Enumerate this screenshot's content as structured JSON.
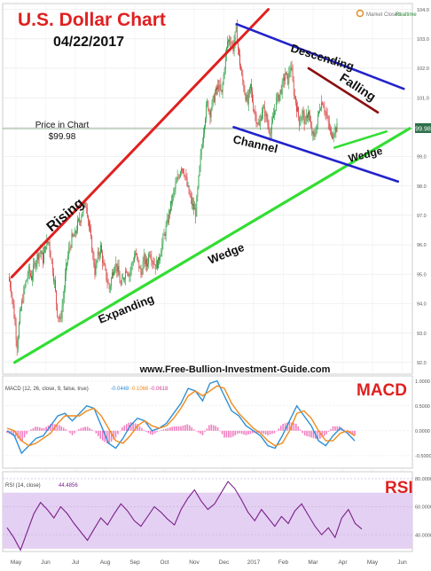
{
  "header": {
    "title": "U.S. Dollar Chart",
    "date": "04/22/2017",
    "market_status": "Market Closed",
    "feed": "Realtime",
    "watermark": "www.Free-Bullion-Investment-Guide.com"
  },
  "price_note": {
    "line1": "Price in Chart",
    "line2": "$99.98",
    "badge": "99.98"
  },
  "annotations": {
    "rising": "Rising",
    "expanding": "Expanding",
    "wedge_main": "Wedge",
    "descending": "Descending",
    "channel": "Channel",
    "falling": "Falling",
    "wedge_small": "Wedge",
    "macd_label": "MACD",
    "rsi_label": "RSI"
  },
  "colors": {
    "rising_line": "#e02020",
    "wedge_line": "#33dd33",
    "channel_line": "#2222cc",
    "falling_line": "#8b1010",
    "title": "#e02020",
    "candle_up": "#1f9a3a",
    "candle_down": "#d63030",
    "macd_line": "#2e8fd6",
    "signal_line": "#ee8a1c",
    "histogram": "#f080c0",
    "rsi_line": "#7a1f8a",
    "rsi_band": "#e4d0f2"
  },
  "chart_data": [
    {
      "type": "candlestick",
      "x_ticks": [
        "May",
        "Jun",
        "Jul",
        "Aug",
        "Sep",
        "Oct",
        "Nov",
        "Dec",
        "2017",
        "Feb",
        "Mar",
        "Apr",
        "May",
        "Jun"
      ],
      "y_ticks": [
        92,
        93,
        94,
        95,
        96,
        97,
        98,
        99,
        100,
        101,
        102,
        103,
        104
      ],
      "ylim": [
        91.6,
        104.2
      ],
      "last_price": 99.98,
      "close": [
        94.9,
        94.5,
        93.6,
        92.6,
        93.6,
        94.2,
        94.7,
        95.1,
        94.9,
        95.3,
        95.6,
        95.8,
        95.5,
        96.0,
        96.1,
        95.4,
        94.7,
        93.7,
        93.4,
        94.2,
        95.2,
        95.8,
        96.2,
        96.3,
        96.7,
        96.9,
        97.3,
        97.4,
        96.6,
        95.9,
        95.1,
        95.6,
        95.9,
        95.3,
        94.9,
        94.5,
        95.0,
        95.4,
        95.1,
        94.6,
        94.9,
        95.2,
        95.0,
        95.4,
        95.7,
        95.4,
        95.0,
        95.5,
        95.3,
        95.8,
        95.5,
        95.3,
        95.4,
        95.9,
        96.3,
        96.7,
        97.2,
        97.6,
        98.0,
        98.3,
        98.7,
        98.5,
        98.0,
        97.6,
        97.3,
        97.1,
        98.2,
        99.3,
        100.2,
        100.8,
        100.5,
        100.9,
        101.2,
        101.4,
        101.1,
        102.1,
        102.9,
        103.0,
        102.7,
        103.3,
        102.4,
        101.7,
        101.2,
        100.8,
        101.4,
        100.7,
        100.3,
        100.0,
        100.6,
        100.5,
        100.1,
        99.8,
        100.4,
        100.9,
        101.1,
        101.4,
        101.8,
        101.6,
        102.1,
        101.2,
        100.7,
        100.2,
        100.5,
        100.1,
        100.6,
        99.9,
        99.6,
        100.1,
        100.7,
        100.9,
        100.5,
        100.1,
        99.7,
        99.9,
        99.98
      ],
      "trendlines": [
        {
          "name": "Rising",
          "from": [
            1,
            94.9
          ],
          "to": [
            90,
            104.0
          ]
        },
        {
          "name": "Expanding Wedge",
          "from": [
            2,
            92.0
          ],
          "to": [
            139,
            99.95
          ]
        },
        {
          "name": "Descending Channel upper",
          "from": [
            79,
            103.5
          ],
          "to": [
            137,
            101.3
          ]
        },
        {
          "name": "Descending Channel lower",
          "from": [
            78,
            100.0
          ],
          "to": [
            135,
            98.15
          ]
        },
        {
          "name": "Falling Wedge upper",
          "from": [
            104,
            102.0
          ],
          "to": [
            128,
            100.5
          ]
        },
        {
          "name": "Falling Wedge lower",
          "from": [
            113,
            99.3
          ],
          "to": [
            131,
            99.85
          ]
        }
      ]
    },
    {
      "type": "line",
      "title": "MACD (12, 26, close, 9, false, true)",
      "legend_values": [
        "-0.0448",
        "-0.1066",
        "-0.0618"
      ],
      "y_ticks": [
        "1.0000",
        "0.5000",
        "0.0000",
        "-0.5000"
      ],
      "ylim": [
        -0.75,
        1.1
      ],
      "series": [
        {
          "name": "MACD",
          "values": [
            0.0,
            -0.1,
            -0.45,
            -0.3,
            -0.15,
            -0.1,
            0.1,
            0.3,
            0.35,
            0.2,
            0.35,
            0.5,
            0.45,
            0.1,
            -0.25,
            -0.35,
            -0.15,
            0.1,
            0.25,
            0.2,
            0.0,
            0.05,
            0.15,
            0.35,
            0.55,
            0.85,
            0.8,
            0.6,
            0.95,
            1.0,
            0.7,
            0.4,
            0.3,
            0.1,
            0.0,
            -0.1,
            -0.3,
            -0.35,
            -0.1,
            0.2,
            0.5,
            0.3,
            0.1,
            -0.2,
            -0.3,
            -0.1,
            0.05,
            -0.05,
            -0.2
          ]
        },
        {
          "name": "Signal",
          "values": [
            0.05,
            0.0,
            -0.2,
            -0.3,
            -0.25,
            -0.15,
            -0.05,
            0.15,
            0.3,
            0.3,
            0.3,
            0.4,
            0.45,
            0.3,
            0.05,
            -0.2,
            -0.25,
            -0.1,
            0.1,
            0.2,
            0.1,
            0.05,
            0.1,
            0.25,
            0.45,
            0.7,
            0.8,
            0.7,
            0.8,
            0.9,
            0.85,
            0.55,
            0.35,
            0.2,
            0.05,
            -0.05,
            -0.2,
            -0.3,
            -0.25,
            0.0,
            0.35,
            0.4,
            0.25,
            0.0,
            -0.2,
            -0.2,
            -0.05,
            0.0,
            -0.1
          ]
        }
      ]
    },
    {
      "type": "line",
      "title": "RSI (14, close)",
      "legend_values": [
        "44.4856"
      ],
      "y_ticks": [
        "80.0000",
        "60.0000",
        "40.0000"
      ],
      "ylim": [
        28,
        85
      ],
      "band": [
        30,
        70
      ],
      "series": [
        {
          "name": "RSI",
          "values": [
            45,
            38,
            29,
            42,
            55,
            63,
            58,
            52,
            60,
            55,
            48,
            42,
            36,
            44,
            52,
            47,
            55,
            62,
            57,
            50,
            46,
            53,
            60,
            56,
            51,
            47,
            58,
            66,
            72,
            64,
            58,
            62,
            70,
            78,
            73,
            65,
            56,
            50,
            58,
            52,
            46,
            53,
            48,
            57,
            62,
            54,
            46,
            40,
            45,
            38,
            52,
            58,
            48,
            44
          ]
        }
      ]
    }
  ]
}
